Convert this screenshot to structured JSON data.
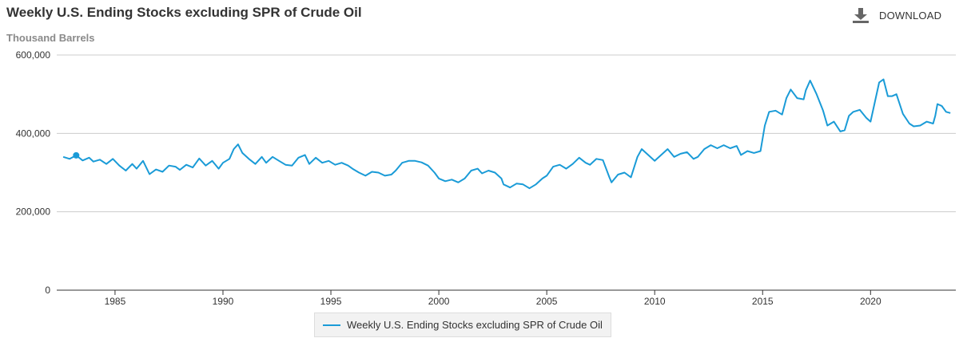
{
  "header": {
    "title": "Weekly U.S. Ending Stocks excluding SPR of Crude Oil",
    "unit_label": "Thousand Barrels",
    "download_label": "DOWNLOAD",
    "download_icon": "download-icon"
  },
  "colors": {
    "series": "#1a9bd7",
    "grid": "#cccccc",
    "axis": "#333333",
    "text": "#333333",
    "muted": "#8a8a8a"
  },
  "chart_data": {
    "type": "line",
    "title": "Weekly U.S. Ending Stocks excluding SPR of Crude Oil",
    "ylabel": "Thousand Barrels",
    "xlabel": "",
    "xlim": [
      1982.3,
      2023.95
    ],
    "ylim": [
      0,
      600000
    ],
    "y_ticks": [
      {
        "value": 0,
        "label": "0"
      },
      {
        "value": 200000,
        "label": "200,000"
      },
      {
        "value": 400000,
        "label": "400,000"
      },
      {
        "value": 600000,
        "label": "600,000"
      }
    ],
    "x_ticks": [
      {
        "value": 1985,
        "label": "1985"
      },
      {
        "value": 1990,
        "label": "1990"
      },
      {
        "value": 1995,
        "label": "1995"
      },
      {
        "value": 2000,
        "label": "2000"
      },
      {
        "value": 2005,
        "label": "2005"
      },
      {
        "value": 2010,
        "label": "2010"
      },
      {
        "value": 2015,
        "label": "2015"
      },
      {
        "value": 2020,
        "label": "2020"
      }
    ],
    "grid": true,
    "legend_position": "bottom-center",
    "series": [
      {
        "name": "Weekly U.S. Ending Stocks excluding SPR of Crude Oil",
        "marker": {
          "x": 1983.2,
          "y": 344000
        },
        "points": [
          [
            1982.6,
            340000
          ],
          [
            1982.9,
            335000
          ],
          [
            1983.2,
            344000
          ],
          [
            1983.5,
            331000
          ],
          [
            1983.8,
            338000
          ],
          [
            1984.0,
            328000
          ],
          [
            1984.3,
            333000
          ],
          [
            1984.6,
            322000
          ],
          [
            1984.9,
            335000
          ],
          [
            1985.2,
            318000
          ],
          [
            1985.5,
            305000
          ],
          [
            1985.8,
            322000
          ],
          [
            1986.0,
            310000
          ],
          [
            1986.3,
            330000
          ],
          [
            1986.6,
            296000
          ],
          [
            1986.9,
            308000
          ],
          [
            1987.2,
            302000
          ],
          [
            1987.5,
            318000
          ],
          [
            1987.8,
            315000
          ],
          [
            1988.0,
            307000
          ],
          [
            1988.3,
            320000
          ],
          [
            1988.6,
            313000
          ],
          [
            1988.9,
            336000
          ],
          [
            1989.2,
            318000
          ],
          [
            1989.5,
            330000
          ],
          [
            1989.8,
            310000
          ],
          [
            1990.0,
            325000
          ],
          [
            1990.3,
            335000
          ],
          [
            1990.5,
            360000
          ],
          [
            1990.7,
            372000
          ],
          [
            1990.9,
            350000
          ],
          [
            1991.2,
            335000
          ],
          [
            1991.5,
            322000
          ],
          [
            1991.8,
            340000
          ],
          [
            1992.0,
            325000
          ],
          [
            1992.3,
            340000
          ],
          [
            1992.6,
            330000
          ],
          [
            1992.9,
            320000
          ],
          [
            1993.2,
            318000
          ],
          [
            1993.5,
            338000
          ],
          [
            1993.8,
            345000
          ],
          [
            1994.0,
            322000
          ],
          [
            1994.3,
            338000
          ],
          [
            1994.6,
            325000
          ],
          [
            1994.9,
            330000
          ],
          [
            1995.2,
            320000
          ],
          [
            1995.5,
            325000
          ],
          [
            1995.8,
            318000
          ],
          [
            1996.0,
            310000
          ],
          [
            1996.3,
            300000
          ],
          [
            1996.6,
            292000
          ],
          [
            1996.9,
            302000
          ],
          [
            1997.2,
            300000
          ],
          [
            1997.5,
            292000
          ],
          [
            1997.8,
            295000
          ],
          [
            1998.0,
            305000
          ],
          [
            1998.3,
            325000
          ],
          [
            1998.6,
            330000
          ],
          [
            1998.9,
            330000
          ],
          [
            1999.2,
            326000
          ],
          [
            1999.5,
            318000
          ],
          [
            1999.8,
            300000
          ],
          [
            2000.0,
            285000
          ],
          [
            2000.3,
            278000
          ],
          [
            2000.6,
            282000
          ],
          [
            2000.9,
            275000
          ],
          [
            2001.2,
            285000
          ],
          [
            2001.5,
            305000
          ],
          [
            2001.8,
            310000
          ],
          [
            2002.0,
            298000
          ],
          [
            2002.3,
            305000
          ],
          [
            2002.6,
            300000
          ],
          [
            2002.9,
            285000
          ],
          [
            2003.0,
            270000
          ],
          [
            2003.3,
            262000
          ],
          [
            2003.6,
            272000
          ],
          [
            2003.9,
            270000
          ],
          [
            2004.2,
            260000
          ],
          [
            2004.5,
            270000
          ],
          [
            2004.8,
            285000
          ],
          [
            2005.0,
            292000
          ],
          [
            2005.3,
            315000
          ],
          [
            2005.6,
            320000
          ],
          [
            2005.9,
            310000
          ],
          [
            2006.2,
            322000
          ],
          [
            2006.5,
            338000
          ],
          [
            2006.8,
            325000
          ],
          [
            2007.0,
            320000
          ],
          [
            2007.3,
            335000
          ],
          [
            2007.6,
            332000
          ],
          [
            2007.9,
            288000
          ],
          [
            2008.0,
            275000
          ],
          [
            2008.3,
            295000
          ],
          [
            2008.6,
            300000
          ],
          [
            2008.9,
            288000
          ],
          [
            2009.2,
            340000
          ],
          [
            2009.4,
            360000
          ],
          [
            2009.7,
            345000
          ],
          [
            2010.0,
            330000
          ],
          [
            2010.3,
            345000
          ],
          [
            2010.6,
            360000
          ],
          [
            2010.9,
            340000
          ],
          [
            2011.2,
            348000
          ],
          [
            2011.5,
            352000
          ],
          [
            2011.8,
            335000
          ],
          [
            2012.0,
            340000
          ],
          [
            2012.3,
            360000
          ],
          [
            2012.6,
            370000
          ],
          [
            2012.9,
            362000
          ],
          [
            2013.2,
            370000
          ],
          [
            2013.5,
            362000
          ],
          [
            2013.8,
            368000
          ],
          [
            2014.0,
            345000
          ],
          [
            2014.3,
            355000
          ],
          [
            2014.6,
            350000
          ],
          [
            2014.9,
            355000
          ],
          [
            2015.1,
            420000
          ],
          [
            2015.3,
            455000
          ],
          [
            2015.6,
            458000
          ],
          [
            2015.9,
            448000
          ],
          [
            2016.1,
            490000
          ],
          [
            2016.3,
            512000
          ],
          [
            2016.6,
            490000
          ],
          [
            2016.9,
            487000
          ],
          [
            2017.0,
            510000
          ],
          [
            2017.2,
            535000
          ],
          [
            2017.5,
            500000
          ],
          [
            2017.8,
            458000
          ],
          [
            2018.0,
            420000
          ],
          [
            2018.3,
            430000
          ],
          [
            2018.6,
            405000
          ],
          [
            2018.8,
            408000
          ],
          [
            2019.0,
            445000
          ],
          [
            2019.2,
            455000
          ],
          [
            2019.5,
            460000
          ],
          [
            2019.8,
            440000
          ],
          [
            2020.0,
            430000
          ],
          [
            2020.2,
            480000
          ],
          [
            2020.4,
            530000
          ],
          [
            2020.6,
            538000
          ],
          [
            2020.8,
            495000
          ],
          [
            2021.0,
            495000
          ],
          [
            2021.2,
            500000
          ],
          [
            2021.5,
            450000
          ],
          [
            2021.8,
            425000
          ],
          [
            2022.0,
            418000
          ],
          [
            2022.3,
            420000
          ],
          [
            2022.6,
            430000
          ],
          [
            2022.9,
            425000
          ],
          [
            2023.0,
            445000
          ],
          [
            2023.1,
            475000
          ],
          [
            2023.3,
            470000
          ],
          [
            2023.5,
            455000
          ],
          [
            2023.7,
            452000
          ]
        ]
      }
    ]
  }
}
